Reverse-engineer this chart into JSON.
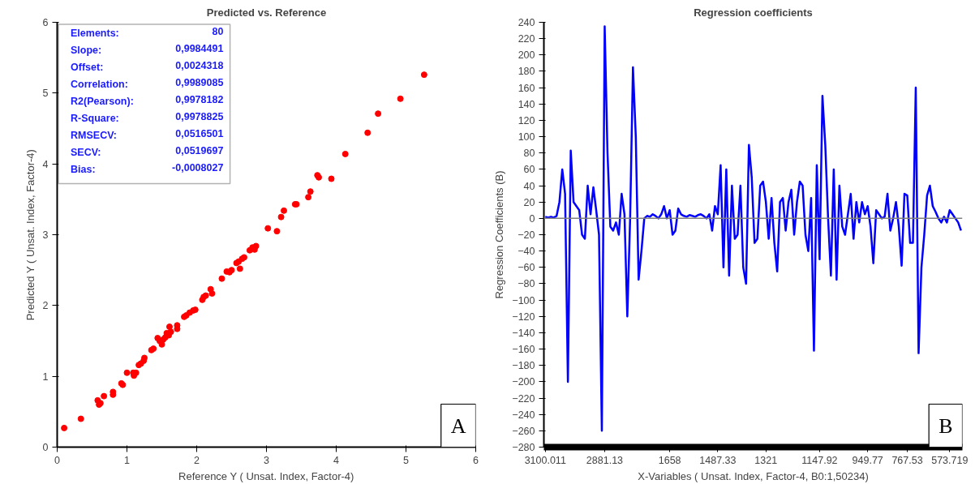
{
  "chart_data": [
    {
      "type": "scatter",
      "title": "Predicted vs. Reference",
      "xlabel": "Reference Y ( Unsat. Index, Factor-4)",
      "ylabel": "Predicted Y ( Unsat. Index, Factor-4)",
      "xlim": [
        0,
        6
      ],
      "ylim": [
        0,
        6
      ],
      "xticks": [
        0,
        1,
        2,
        3,
        4,
        5,
        6
      ],
      "yticks": [
        0,
        1,
        2,
        3,
        4,
        5,
        6
      ],
      "marker": "circle",
      "annotations": [
        "Elements: 80",
        "Slope: 0,9984491",
        "Offset: 0,0024318",
        "Correlation: 0,9989085",
        "R2(Pearson): 0,9978182",
        "R-Square: 0,9978825",
        "RMSECV: 0,0516501",
        "SECV: 0,0519697",
        "Bias: -0,0008027",
        "A"
      ],
      "x": [
        0.1,
        0.34,
        0.58,
        0.6,
        0.62,
        0.67,
        0.8,
        0.8,
        0.92,
        0.94,
        1.0,
        1.09,
        1.1,
        1.13,
        1.17,
        1.2,
        1.24,
        1.25,
        1.35,
        1.38,
        1.44,
        1.47,
        1.5,
        1.52,
        1.55,
        1.57,
        1.6,
        1.61,
        1.63,
        1.72,
        1.72,
        1.82,
        1.85,
        1.9,
        1.95,
        1.98,
        2.08,
        2.1,
        2.13,
        2.2,
        2.22,
        2.36,
        2.43,
        2.47,
        2.5,
        2.57,
        2.6,
        2.62,
        2.65,
        2.68,
        2.76,
        2.8,
        2.83,
        2.85,
        3.02,
        3.15,
        3.21,
        3.25,
        3.41,
        3.43,
        3.6,
        3.63,
        3.73,
        3.75,
        3.93,
        4.13,
        4.45,
        4.6,
        4.92,
        5.26
      ],
      "series": [
        {
          "color": "#ff0000",
          "values": [
            0.27,
            0.4,
            0.66,
            0.6,
            0.62,
            0.72,
            0.78,
            0.74,
            0.9,
            0.88,
            1.05,
            1.05,
            1.01,
            1.05,
            1.16,
            1.18,
            1.22,
            1.26,
            1.37,
            1.39,
            1.54,
            1.5,
            1.45,
            1.52,
            1.55,
            1.61,
            1.58,
            1.7,
            1.63,
            1.72,
            1.67,
            1.84,
            1.86,
            1.9,
            1.93,
            1.94,
            2.08,
            2.12,
            2.14,
            2.23,
            2.17,
            2.38,
            2.48,
            2.47,
            2.5,
            2.6,
            2.62,
            2.52,
            2.66,
            2.68,
            2.78,
            2.82,
            2.79,
            2.84,
            3.09,
            3.05,
            3.25,
            3.34,
            3.43,
            3.43,
            3.53,
            3.61,
            3.84,
            3.81,
            3.79,
            4.14,
            4.44,
            4.71,
            4.92,
            5.26
          ]
        }
      ]
    },
    {
      "type": "line",
      "title": "Regression coefficients",
      "xlabel": "X-Variables ( Unsat. Index, Factor-4, B0:1,50234)",
      "ylabel": "Regression Coefficients (B)",
      "ylim": [
        -280,
        240
      ],
      "categories": [
        "3100.011",
        null,
        null,
        null,
        null,
        null,
        null,
        null,
        null,
        null,
        null,
        null,
        null,
        null,
        null,
        null,
        null,
        null,
        null,
        null,
        null,
        "2881.13",
        null,
        null,
        null,
        null,
        null,
        null,
        null,
        null,
        null,
        null,
        null,
        null,
        null,
        null,
        null,
        null,
        null,
        null,
        null,
        null,
        null,
        null,
        "1658",
        null,
        null,
        null,
        null,
        null,
        null,
        null,
        null,
        null,
        null,
        null,
        null,
        null,
        null,
        null,
        null,
        "1487.33",
        null,
        null,
        null,
        null,
        null,
        null,
        null,
        null,
        null,
        null,
        null,
        null,
        null,
        null,
        null,
        null,
        "1321",
        null,
        null,
        null,
        null,
        null,
        null,
        null,
        null,
        null,
        null,
        null,
        null,
        null,
        null,
        null,
        null,
        null,
        null,
        "1147.92",
        null,
        null,
        null,
        null,
        null,
        null,
        null,
        null,
        null,
        null,
        null,
        null,
        null,
        null,
        null,
        null,
        "949.77",
        null,
        null,
        null,
        null,
        null,
        null,
        null,
        null,
        null,
        null,
        null,
        null,
        null,
        "767.53",
        null,
        null,
        null,
        null,
        null,
        null,
        null,
        null,
        null,
        null,
        null,
        null,
        null,
        null,
        "573.719",
        null,
        null,
        null,
        null
      ],
      "yticks": [
        -280,
        -260,
        -240,
        -220,
        -200,
        -180,
        -160,
        -140,
        -120,
        -100,
        -80,
        -60,
        -40,
        -20,
        0,
        20,
        40,
        60,
        80,
        100,
        120,
        140,
        160,
        180,
        200,
        220,
        240
      ],
      "ref_lines": [
        {
          "axis": "y",
          "value": 0,
          "color": "#808080"
        }
      ],
      "annotations": [
        "B"
      ],
      "series": [
        {
          "color": "#0000ff",
          "values": [
            2,
            1,
            2,
            1,
            3,
            20,
            60,
            30,
            -200,
            83,
            20,
            15,
            10,
            -20,
            -25,
            40,
            5,
            38,
            10,
            -20,
            -260,
            235,
            80,
            -10,
            -15,
            -5,
            -20,
            30,
            5,
            -120,
            0,
            185,
            100,
            -75,
            -40,
            0,
            3,
            2,
            5,
            3,
            0,
            5,
            15,
            0,
            10,
            -20,
            -15,
            12,
            5,
            3,
            2,
            4,
            3,
            2,
            4,
            5,
            3,
            0,
            5,
            -15,
            15,
            5,
            65,
            -60,
            60,
            -70,
            40,
            -25,
            -20,
            40,
            -60,
            -80,
            90,
            50,
            -30,
            -25,
            40,
            45,
            20,
            -25,
            25,
            -30,
            -65,
            20,
            25,
            -15,
            20,
            35,
            -20,
            20,
            45,
            40,
            -20,
            -40,
            25,
            -162,
            65,
            -50,
            150,
            90,
            0,
            -70,
            60,
            -75,
            40,
            -10,
            -20,
            5,
            30,
            -25,
            20,
            -5,
            20,
            5,
            15,
            -10,
            -55,
            10,
            5,
            0,
            2,
            30,
            -15,
            0,
            20,
            -10,
            -58,
            30,
            28,
            -30,
            -30,
            160,
            -165,
            -60,
            -20,
            28,
            40,
            15,
            8,
            0,
            -5,
            2,
            -5,
            10,
            5,
            0,
            -5,
            -15
          ]
        }
      ]
    }
  ]
}
